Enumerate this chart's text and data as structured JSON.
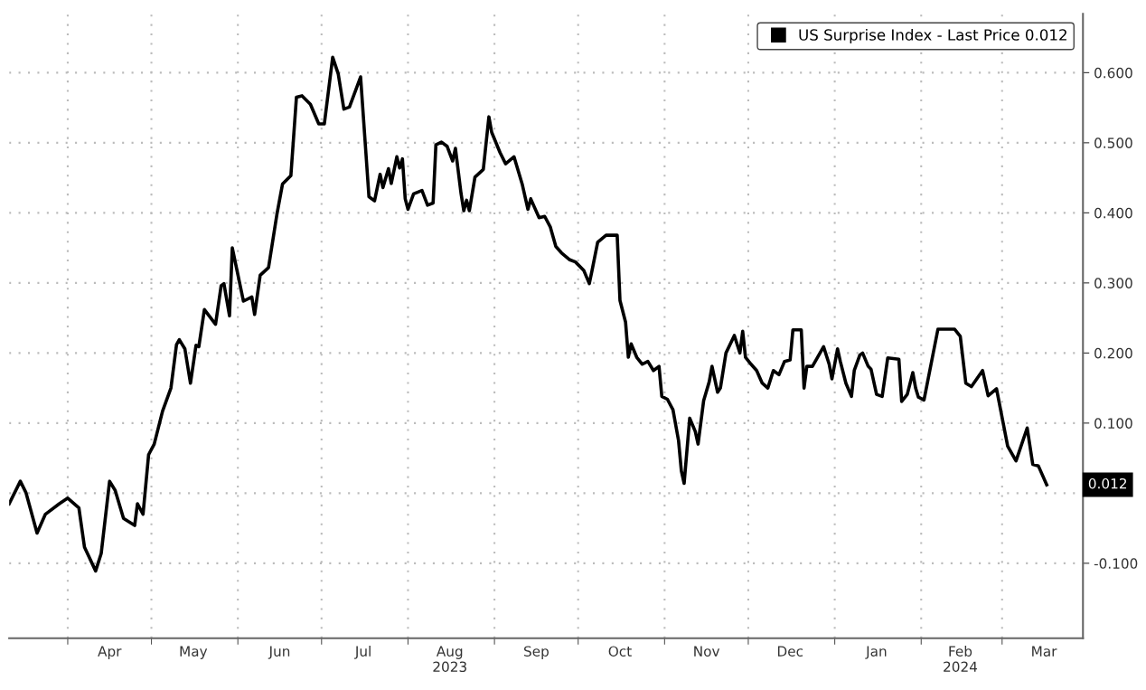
{
  "chart_data": {
    "type": "line",
    "x": [
      "2023-03-11",
      "2023-03-15",
      "2023-03-17",
      "2023-03-21",
      "2023-03-24",
      "2023-03-29",
      "2023-04-01",
      "2023-04-05",
      "2023-04-07",
      "2023-04-11",
      "2023-04-13",
      "2023-04-16",
      "2023-04-18",
      "2023-04-21",
      "2023-04-25",
      "2023-04-26",
      "2023-04-28",
      "2023-04-30",
      "2023-05-02",
      "2023-05-05",
      "2023-05-08",
      "2023-05-10",
      "2023-05-11",
      "2023-05-13",
      "2023-05-15",
      "2023-05-17",
      "2023-05-18",
      "2023-05-20",
      "2023-05-24",
      "2023-05-26",
      "2023-05-27",
      "2023-05-29",
      "2023-05-30",
      "2023-06-03",
      "2023-06-06",
      "2023-06-07",
      "2023-06-09",
      "2023-06-12",
      "2023-06-15",
      "2023-06-17",
      "2023-06-20",
      "2023-06-22",
      "2023-06-24",
      "2023-06-27",
      "2023-06-30",
      "2023-07-02",
      "2023-07-05",
      "2023-07-07",
      "2023-07-09",
      "2023-07-11",
      "2023-07-15",
      "2023-07-17",
      "2023-07-18",
      "2023-07-20",
      "2023-07-22",
      "2023-07-23",
      "2023-07-25",
      "2023-07-26",
      "2023-07-28",
      "2023-07-29",
      "2023-07-30",
      "2023-07-31",
      "2023-08-01",
      "2023-08-03",
      "2023-08-06",
      "2023-08-08",
      "2023-08-10",
      "2023-08-11",
      "2023-08-13",
      "2023-08-15",
      "2023-08-17",
      "2023-08-18",
      "2023-08-20",
      "2023-08-21",
      "2023-08-22",
      "2023-08-23",
      "2023-08-25",
      "2023-08-28",
      "2023-08-30",
      "2023-08-31",
      "2023-09-03",
      "2023-09-05",
      "2023-09-08",
      "2023-09-11",
      "2023-09-13",
      "2023-09-14",
      "2023-09-17",
      "2023-09-19",
      "2023-09-21",
      "2023-09-23",
      "2023-09-25",
      "2023-09-28",
      "2023-09-30",
      "2023-10-03",
      "2023-10-05",
      "2023-10-06",
      "2023-10-08",
      "2023-10-11",
      "2023-10-15",
      "2023-10-16",
      "2023-10-18",
      "2023-10-19",
      "2023-10-20",
      "2023-10-22",
      "2023-10-24",
      "2023-10-26",
      "2023-10-28",
      "2023-10-30",
      "2023-10-31",
      "2023-11-02",
      "2023-11-04",
      "2023-11-06",
      "2023-11-07",
      "2023-11-08",
      "2023-11-10",
      "2023-11-12",
      "2023-11-13",
      "2023-11-15",
      "2023-11-17",
      "2023-11-18",
      "2023-11-20",
      "2023-11-21",
      "2023-11-23",
      "2023-11-26",
      "2023-11-28",
      "2023-11-29",
      "2023-11-30",
      "2023-12-02",
      "2023-12-04",
      "2023-12-06",
      "2023-12-08",
      "2023-12-10",
      "2023-12-12",
      "2023-12-14",
      "2023-12-16",
      "2023-12-17",
      "2023-12-20",
      "2023-12-21",
      "2023-12-22",
      "2023-12-24",
      "2023-12-28",
      "2023-12-30",
      "2023-12-31",
      "2024-01-02",
      "2024-01-03",
      "2024-01-05",
      "2024-01-07",
      "2024-01-08",
      "2024-01-10",
      "2024-01-11",
      "2024-01-13",
      "2024-01-14",
      "2024-01-16",
      "2024-01-18",
      "2024-01-20",
      "2024-01-24",
      "2024-01-25",
      "2024-01-27",
      "2024-01-29",
      "2024-01-30",
      "2024-01-31",
      "2024-02-02",
      "2024-02-07",
      "2024-02-13",
      "2024-02-15",
      "2024-02-17",
      "2024-02-19",
      "2024-02-23",
      "2024-02-25",
      "2024-02-28",
      "2024-03-03",
      "2024-03-06",
      "2024-03-10",
      "2024-03-12",
      "2024-03-14",
      "2024-03-17"
    ],
    "series": [
      {
        "name": "US Surprise Index - Last Price 0.012",
        "color": "#000000",
        "values": [
          -0.015,
          0.017,
          0.001,
          -0.057,
          -0.03,
          -0.015,
          -0.007,
          -0.021,
          -0.077,
          -0.111,
          -0.086,
          0.017,
          0.004,
          -0.036,
          -0.046,
          -0.015,
          -0.03,
          0.055,
          0.07,
          0.117,
          0.15,
          0.212,
          0.219,
          0.206,
          0.157,
          0.211,
          0.209,
          0.262,
          0.241,
          0.296,
          0.299,
          0.253,
          0.35,
          0.274,
          0.28,
          0.255,
          0.311,
          0.322,
          0.398,
          0.441,
          0.453,
          0.565,
          0.567,
          0.555,
          0.527,
          0.527,
          0.622,
          0.598,
          0.548,
          0.551,
          0.594,
          0.48,
          0.423,
          0.417,
          0.455,
          0.436,
          0.463,
          0.442,
          0.48,
          0.464,
          0.477,
          0.42,
          0.405,
          0.427,
          0.432,
          0.411,
          0.414,
          0.497,
          0.501,
          0.495,
          0.474,
          0.492,
          0.428,
          0.403,
          0.418,
          0.403,
          0.451,
          0.462,
          0.537,
          0.515,
          0.486,
          0.47,
          0.48,
          0.44,
          0.405,
          0.42,
          0.393,
          0.395,
          0.38,
          0.352,
          0.343,
          0.333,
          0.33,
          0.318,
          0.299,
          0.318,
          0.358,
          0.368,
          0.368,
          0.275,
          0.244,
          0.194,
          0.213,
          0.194,
          0.184,
          0.188,
          0.175,
          0.181,
          0.138,
          0.134,
          0.119,
          0.075,
          0.032,
          0.014,
          0.107,
          0.088,
          0.07,
          0.132,
          0.159,
          0.181,
          0.144,
          0.15,
          0.2,
          0.225,
          0.2,
          0.231,
          0.194,
          0.184,
          0.175,
          0.157,
          0.15,
          0.175,
          0.169,
          0.188,
          0.19,
          0.233,
          0.233,
          0.15,
          0.181,
          0.181,
          0.209,
          0.184,
          0.163,
          0.206,
          0.188,
          0.157,
          0.138,
          0.175,
          0.197,
          0.2,
          0.181,
          0.177,
          0.141,
          0.138,
          0.193,
          0.191,
          0.131,
          0.141,
          0.172,
          0.15,
          0.137,
          0.133,
          0.234,
          0.234,
          0.224,
          0.157,
          0.152,
          0.175,
          0.139,
          0.149,
          0.067,
          0.046,
          0.093,
          0.041,
          0.039,
          0.012
        ]
      }
    ],
    "xlim": [
      "2023-03-11",
      "2024-03-30"
    ],
    "xticks": [
      {
        "value": "2023-04-01",
        "label": null
      },
      {
        "value": "2023-04-16",
        "label": "Apr"
      },
      {
        "value": "2023-05-01",
        "label": null
      },
      {
        "value": "2023-05-16",
        "label": "May"
      },
      {
        "value": "2023-06-01",
        "label": null
      },
      {
        "value": "2023-06-16",
        "label": "Jun"
      },
      {
        "value": "2023-07-01",
        "label": null
      },
      {
        "value": "2023-07-16",
        "label": "Jul"
      },
      {
        "value": "2023-08-01",
        "label": null
      },
      {
        "value": "2023-08-16",
        "label": "Aug\n2023"
      },
      {
        "value": "2023-09-01",
        "label": null
      },
      {
        "value": "2023-09-16",
        "label": "Sep"
      },
      {
        "value": "2023-10-01",
        "label": null
      },
      {
        "value": "2023-10-16",
        "label": "Oct"
      },
      {
        "value": "2023-11-01",
        "label": null
      },
      {
        "value": "2023-11-16",
        "label": "Nov"
      },
      {
        "value": "2023-12-01",
        "label": null
      },
      {
        "value": "2023-12-16",
        "label": "Dec"
      },
      {
        "value": "2024-01-01",
        "label": null
      },
      {
        "value": "2024-01-16",
        "label": "Jan"
      },
      {
        "value": "2024-02-01",
        "label": null
      },
      {
        "value": "2024-02-15",
        "label": "Feb\n2024"
      },
      {
        "value": "2024-03-01",
        "label": null
      },
      {
        "value": "2024-03-16",
        "label": "Mar"
      }
    ],
    "ylim": [
      -0.207,
      0.684
    ],
    "yticks": [
      {
        "value": -0.1,
        "label": "-0.100"
      },
      {
        "value": 0,
        "label": null
      },
      {
        "value": 0.1,
        "label": "0.100"
      },
      {
        "value": 0.2,
        "label": "0.200"
      },
      {
        "value": 0.3,
        "label": "0.300"
      },
      {
        "value": 0.4,
        "label": "0.400"
      },
      {
        "value": 0.5,
        "label": "0.500"
      },
      {
        "value": 0.6,
        "label": "0.600"
      }
    ],
    "annotations": [
      "0.012"
    ],
    "grid": true,
    "legend": "top right",
    "marker": "none",
    "line_style": "solid"
  }
}
